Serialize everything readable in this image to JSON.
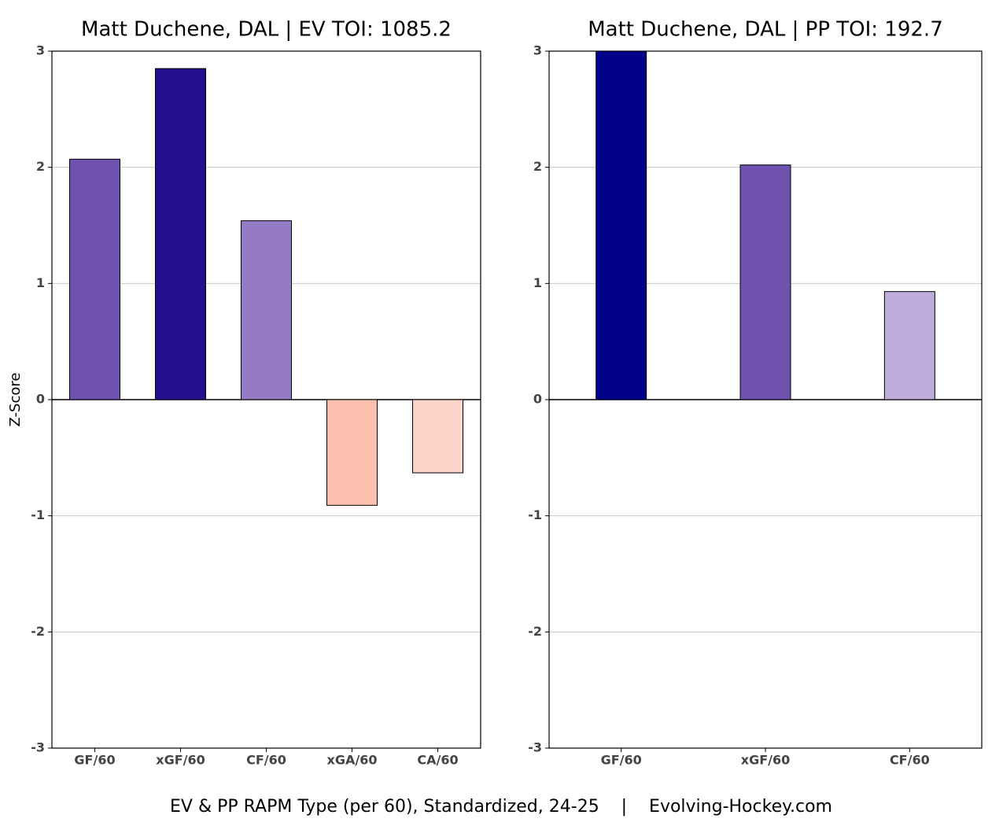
{
  "chart_data": [
    {
      "type": "bar",
      "title": "Matt Duchene, DAL  |  EV TOI: 1085.2",
      "ylabel": "Z-Score",
      "categories": [
        "GF/60",
        "xGF/60",
        "CF/60",
        "xGA/60",
        "CA/60"
      ],
      "values": [
        2.07,
        2.85,
        1.54,
        -0.91,
        -0.63
      ],
      "colors": [
        "#6f52b0",
        "#23108f",
        "#957bc3",
        "#fcbfae",
        "#fdd4c9"
      ],
      "ylim": [
        -3,
        3
      ],
      "yticks": [
        -3,
        -2,
        -1,
        0,
        1,
        2,
        3
      ],
      "grid": true
    },
    {
      "type": "bar",
      "title": "Matt Duchene, DAL  |  PP TOI: 192.7",
      "categories": [
        "GF/60",
        "xGF/60",
        "CF/60"
      ],
      "values": [
        3.0,
        2.02,
        0.93
      ],
      "colors": [
        "#00008b",
        "#6f52b0",
        "#bfaedb"
      ],
      "ylim": [
        -3,
        3
      ],
      "yticks": [
        -3,
        -2,
        -1,
        0,
        1,
        2,
        3
      ],
      "grid": true
    }
  ],
  "caption": "EV & PP RAPM Type (per 60), Standardized, 24-25    |    Evolving-Hockey.com"
}
